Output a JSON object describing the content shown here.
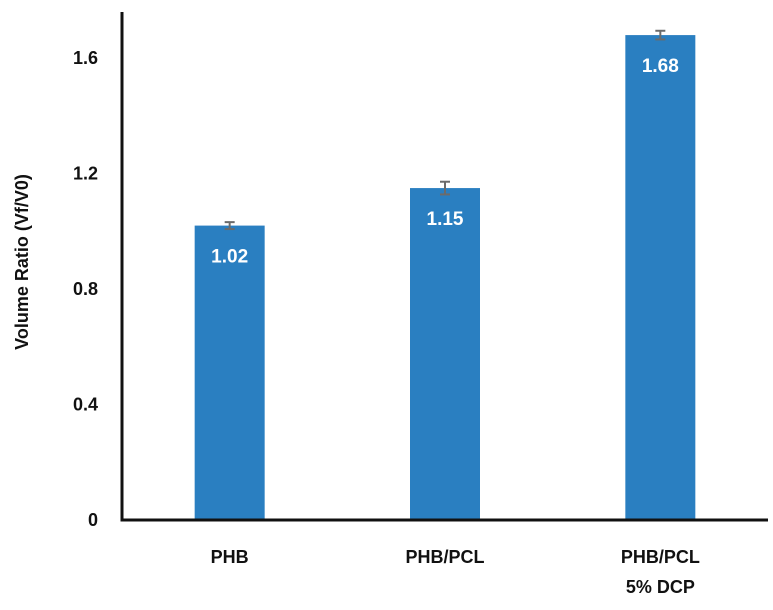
{
  "chart_data": {
    "type": "bar",
    "title": "",
    "xlabel": "",
    "ylabel": "Volume Ratio (Vf/V0)",
    "ylim": [
      0,
      1.76
    ],
    "yticks": [
      "0",
      "0.4",
      "0.8",
      "1.2",
      "1.6"
    ],
    "categories": [
      [
        "PHB"
      ],
      [
        "PHB/PCL"
      ],
      [
        "PHB/PCL",
        "5% DCP"
      ]
    ],
    "values": [
      1.02,
      1.15,
      1.68
    ],
    "errors": [
      0.012,
      0.022,
      0.015
    ],
    "data_labels": [
      "1.02",
      "1.15",
      "1.68"
    ],
    "bar_color": "#2a7fc1",
    "error_color": "#6b6b6b",
    "grid": false,
    "legend": "none"
  }
}
